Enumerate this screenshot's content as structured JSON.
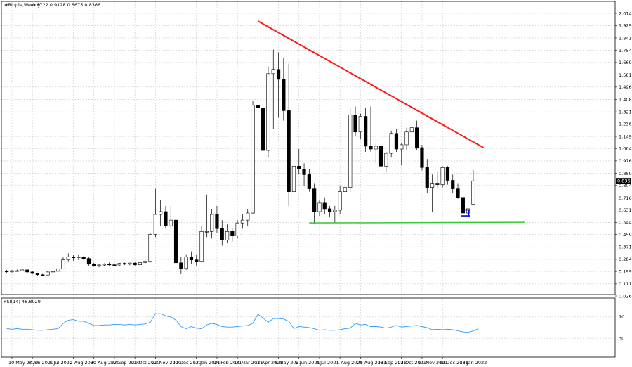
{
  "header": {
    "symbol_title": "#Ripple,Weekly",
    "ohlc": "0.6722 0.9128 0.6675 0.8366"
  },
  "price_axis": {
    "ticks": [
      "2.0145",
      "1.9290",
      "1.8415",
      "1.7540",
      "1.6690",
      "1.5815",
      "1.4960",
      "1.4085",
      "1.3215",
      "1.2365",
      "1.1490",
      "1.0640",
      "0.9765",
      "0.8890",
      "0.8040",
      "0.7165",
      "0.6315",
      "0.5440",
      "0.4590",
      "0.3715",
      "0.2840",
      "0.1990",
      "0.1115",
      "0.0265"
    ],
    "current_price": "0.8366"
  },
  "rsi_panel": {
    "title": "RSI(14) 48.8929",
    "levels": [
      "70",
      "30"
    ]
  },
  "time_axis": {
    "labels": [
      "10 May 2020",
      "7 Jun 2020",
      "5 Jul 2020",
      "2 Aug 2020",
      "30 Aug 2020",
      "27 Sep 2020",
      "25 Oct 2020",
      "22 Nov 2020",
      "20 Dec 2020",
      "17 Jan 2021",
      "14 Feb 2021",
      "14 Mar 2021",
      "11 Apr 2021",
      "9 May 2021",
      "6 Jun 2021",
      "4 Jul 2021",
      "1 Aug 2021",
      "29 Aug 2021",
      "26 Sep 2021",
      "24 Oct 2021",
      "21 Nov 2021",
      "19 Dec 2021",
      "16 Jan 2022"
    ]
  },
  "colors": {
    "resistance": "#ff1a1a",
    "support": "#33cc33",
    "rsi_line": "#3399ff",
    "marker": "#0000cc",
    "up_candle": "#ffffff",
    "down_candle": "#000000"
  },
  "chart_data": {
    "type": "candlestick",
    "title": "#Ripple,Weekly",
    "ylim": [
      0.0265,
      2.0145
    ],
    "rsi_ylim": [
      0,
      100
    ],
    "candles": [
      {
        "o": 0.202,
        "h": 0.21,
        "l": 0.19,
        "c": 0.196
      },
      {
        "o": 0.196,
        "h": 0.209,
        "l": 0.191,
        "c": 0.204
      },
      {
        "o": 0.204,
        "h": 0.212,
        "l": 0.198,
        "c": 0.201
      },
      {
        "o": 0.201,
        "h": 0.218,
        "l": 0.196,
        "c": 0.21
      },
      {
        "o": 0.21,
        "h": 0.214,
        "l": 0.19,
        "c": 0.195
      },
      {
        "o": 0.195,
        "h": 0.2,
        "l": 0.18,
        "c": 0.185
      },
      {
        "o": 0.185,
        "h": 0.19,
        "l": 0.17,
        "c": 0.176
      },
      {
        "o": 0.176,
        "h": 0.182,
        "l": 0.17,
        "c": 0.174
      },
      {
        "o": 0.174,
        "h": 0.2,
        "l": 0.172,
        "c": 0.195
      },
      {
        "o": 0.195,
        "h": 0.21,
        "l": 0.188,
        "c": 0.2
      },
      {
        "o": 0.2,
        "h": 0.222,
        "l": 0.196,
        "c": 0.218
      },
      {
        "o": 0.218,
        "h": 0.3,
        "l": 0.215,
        "c": 0.28
      },
      {
        "o": 0.28,
        "h": 0.326,
        "l": 0.27,
        "c": 0.3
      },
      {
        "o": 0.3,
        "h": 0.315,
        "l": 0.275,
        "c": 0.295
      },
      {
        "o": 0.295,
        "h": 0.32,
        "l": 0.28,
        "c": 0.3
      },
      {
        "o": 0.3,
        "h": 0.31,
        "l": 0.28,
        "c": 0.29
      },
      {
        "o": 0.29,
        "h": 0.3,
        "l": 0.24,
        "c": 0.25
      },
      {
        "o": 0.25,
        "h": 0.26,
        "l": 0.232,
        "c": 0.24
      },
      {
        "o": 0.24,
        "h": 0.25,
        "l": 0.228,
        "c": 0.244
      },
      {
        "o": 0.244,
        "h": 0.256,
        "l": 0.236,
        "c": 0.25
      },
      {
        "o": 0.25,
        "h": 0.262,
        "l": 0.24,
        "c": 0.246
      },
      {
        "o": 0.246,
        "h": 0.256,
        "l": 0.238,
        "c": 0.244
      },
      {
        "o": 0.244,
        "h": 0.258,
        "l": 0.24,
        "c": 0.256
      },
      {
        "o": 0.256,
        "h": 0.262,
        "l": 0.244,
        "c": 0.25
      },
      {
        "o": 0.25,
        "h": 0.262,
        "l": 0.242,
        "c": 0.258
      },
      {
        "o": 0.258,
        "h": 0.266,
        "l": 0.24,
        "c": 0.246
      },
      {
        "o": 0.246,
        "h": 0.27,
        "l": 0.24,
        "c": 0.262
      },
      {
        "o": 0.262,
        "h": 0.282,
        "l": 0.25,
        "c": 0.27
      },
      {
        "o": 0.27,
        "h": 0.47,
        "l": 0.262,
        "c": 0.46
      },
      {
        "o": 0.46,
        "h": 0.78,
        "l": 0.44,
        "c": 0.6
      },
      {
        "o": 0.6,
        "h": 0.7,
        "l": 0.52,
        "c": 0.62
      },
      {
        "o": 0.62,
        "h": 0.66,
        "l": 0.5,
        "c": 0.52
      },
      {
        "o": 0.52,
        "h": 0.66,
        "l": 0.51,
        "c": 0.56
      },
      {
        "o": 0.56,
        "h": 0.59,
        "l": 0.22,
        "c": 0.26
      },
      {
        "o": 0.26,
        "h": 0.3,
        "l": 0.18,
        "c": 0.22
      },
      {
        "o": 0.22,
        "h": 0.32,
        "l": 0.21,
        "c": 0.3
      },
      {
        "o": 0.3,
        "h": 0.34,
        "l": 0.25,
        "c": 0.28
      },
      {
        "o": 0.28,
        "h": 0.32,
        "l": 0.24,
        "c": 0.27
      },
      {
        "o": 0.27,
        "h": 0.52,
        "l": 0.26,
        "c": 0.48
      },
      {
        "o": 0.48,
        "h": 0.74,
        "l": 0.44,
        "c": 0.48
      },
      {
        "o": 0.48,
        "h": 0.64,
        "l": 0.43,
        "c": 0.6
      },
      {
        "o": 0.6,
        "h": 0.66,
        "l": 0.47,
        "c": 0.5
      },
      {
        "o": 0.5,
        "h": 0.56,
        "l": 0.38,
        "c": 0.42
      },
      {
        "o": 0.42,
        "h": 0.53,
        "l": 0.4,
        "c": 0.48
      },
      {
        "o": 0.48,
        "h": 0.5,
        "l": 0.41,
        "c": 0.45
      },
      {
        "o": 0.45,
        "h": 0.56,
        "l": 0.43,
        "c": 0.54
      },
      {
        "o": 0.54,
        "h": 0.6,
        "l": 0.5,
        "c": 0.56
      },
      {
        "o": 0.56,
        "h": 0.64,
        "l": 0.52,
        "c": 0.61
      },
      {
        "o": 0.61,
        "h": 1.4,
        "l": 0.6,
        "c": 1.37
      },
      {
        "o": 1.37,
        "h": 1.96,
        "l": 0.9,
        "c": 1.35
      },
      {
        "o": 1.35,
        "h": 1.5,
        "l": 1.01,
        "c": 1.05
      },
      {
        "o": 1.05,
        "h": 1.64,
        "l": 1.0,
        "c": 1.59
      },
      {
        "o": 1.59,
        "h": 1.76,
        "l": 1.2,
        "c": 1.62
      },
      {
        "o": 1.62,
        "h": 1.74,
        "l": 1.28,
        "c": 1.55
      },
      {
        "o": 1.55,
        "h": 1.7,
        "l": 1.26,
        "c": 1.33
      },
      {
        "o": 1.33,
        "h": 1.66,
        "l": 0.66,
        "c": 0.76
      },
      {
        "o": 0.76,
        "h": 1.0,
        "l": 0.64,
        "c": 0.94
      },
      {
        "o": 0.94,
        "h": 1.06,
        "l": 0.88,
        "c": 0.92
      },
      {
        "o": 0.92,
        "h": 0.96,
        "l": 0.8,
        "c": 0.88
      },
      {
        "o": 0.88,
        "h": 0.92,
        "l": 0.76,
        "c": 0.78
      },
      {
        "o": 0.78,
        "h": 0.82,
        "l": 0.53,
        "c": 0.62
      },
      {
        "o": 0.62,
        "h": 0.7,
        "l": 0.59,
        "c": 0.68
      },
      {
        "o": 0.68,
        "h": 0.72,
        "l": 0.6,
        "c": 0.64
      },
      {
        "o": 0.64,
        "h": 0.66,
        "l": 0.58,
        "c": 0.62
      },
      {
        "o": 0.62,
        "h": 0.66,
        "l": 0.54,
        "c": 0.63
      },
      {
        "o": 0.63,
        "h": 0.8,
        "l": 0.6,
        "c": 0.76
      },
      {
        "o": 0.76,
        "h": 0.83,
        "l": 0.72,
        "c": 0.79
      },
      {
        "o": 0.79,
        "h": 1.35,
        "l": 0.76,
        "c": 1.3
      },
      {
        "o": 1.3,
        "h": 1.36,
        "l": 1.15,
        "c": 1.18
      },
      {
        "o": 1.18,
        "h": 1.31,
        "l": 1.13,
        "c": 1.29
      },
      {
        "o": 1.29,
        "h": 1.35,
        "l": 1.04,
        "c": 1.08
      },
      {
        "o": 1.08,
        "h": 1.36,
        "l": 1.04,
        "c": 1.06
      },
      {
        "o": 1.06,
        "h": 1.1,
        "l": 0.96,
        "c": 1.08
      },
      {
        "o": 1.08,
        "h": 1.14,
        "l": 0.88,
        "c": 0.94
      },
      {
        "o": 0.94,
        "h": 1.04,
        "l": 0.9,
        "c": 1.03
      },
      {
        "o": 1.03,
        "h": 1.19,
        "l": 1.0,
        "c": 1.17
      },
      {
        "o": 1.17,
        "h": 1.2,
        "l": 1.04,
        "c": 1.06
      },
      {
        "o": 1.06,
        "h": 1.1,
        "l": 0.95,
        "c": 1.09
      },
      {
        "o": 1.09,
        "h": 1.21,
        "l": 1.05,
        "c": 1.18
      },
      {
        "o": 1.18,
        "h": 1.35,
        "l": 1.14,
        "c": 1.21
      },
      {
        "o": 1.21,
        "h": 1.26,
        "l": 1.05,
        "c": 1.07
      },
      {
        "o": 1.07,
        "h": 1.09,
        "l": 0.91,
        "c": 0.93
      },
      {
        "o": 0.93,
        "h": 0.99,
        "l": 0.75,
        "c": 0.79
      },
      {
        "o": 0.79,
        "h": 0.88,
        "l": 0.62,
        "c": 0.82
      },
      {
        "o": 0.82,
        "h": 0.9,
        "l": 0.79,
        "c": 0.81
      },
      {
        "o": 0.81,
        "h": 0.94,
        "l": 0.79,
        "c": 0.93
      },
      {
        "o": 0.93,
        "h": 0.94,
        "l": 0.81,
        "c": 0.84
      },
      {
        "o": 0.84,
        "h": 0.88,
        "l": 0.75,
        "c": 0.78
      },
      {
        "o": 0.78,
        "h": 0.82,
        "l": 0.71,
        "c": 0.72
      },
      {
        "o": 0.72,
        "h": 0.76,
        "l": 0.6,
        "c": 0.61
      },
      {
        "o": 0.61,
        "h": 0.66,
        "l": 0.58,
        "c": 0.64
      },
      {
        "o": 0.6722,
        "h": 0.9128,
        "l": 0.6675,
        "c": 0.8366
      }
    ],
    "resistance_line": {
      "from": {
        "candle": 49,
        "price": 1.96
      },
      "to": {
        "candle": 93,
        "price": 1.07
      }
    },
    "support_line": {
      "from": {
        "candle": 59,
        "price": 0.54
      },
      "to": {
        "candle": 101,
        "price": 0.545
      }
    },
    "rsi": [
      48,
      47,
      48,
      47,
      47,
      46,
      45,
      45,
      46,
      47,
      48,
      58,
      64,
      65,
      62,
      62,
      58,
      54,
      54,
      55,
      55,
      56,
      56,
      55,
      56,
      55,
      56,
      57,
      60,
      76,
      76,
      72,
      70,
      64,
      52,
      48,
      52,
      49,
      48,
      55,
      58,
      56,
      52,
      51,
      51,
      52,
      53,
      54,
      58,
      75,
      68,
      60,
      67,
      67,
      66,
      62,
      48,
      52,
      51,
      50,
      48,
      45,
      46,
      45,
      45,
      46,
      48,
      49,
      58,
      55,
      56,
      52,
      52,
      51,
      49,
      51,
      54,
      51,
      52,
      53,
      54,
      52,
      50,
      46,
      47,
      46,
      47,
      46,
      44,
      42,
      41,
      44,
      48
    ]
  }
}
